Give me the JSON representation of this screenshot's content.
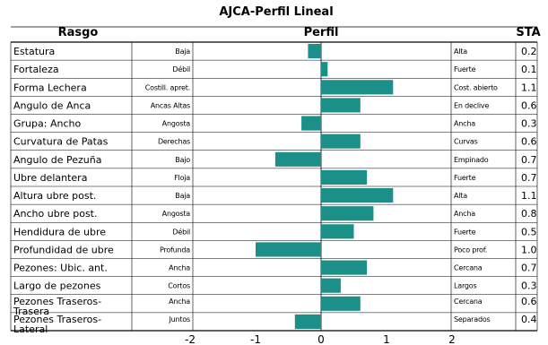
{
  "chart_data": {
    "type": "bar",
    "orientation": "horizontal",
    "title": "AJCA-Perfil Lineal",
    "headers": {
      "trait": "Rasgo",
      "profile": "Perfil",
      "sta": "STA"
    },
    "xlim": [
      -2,
      2
    ],
    "xticks": [
      "-2",
      "-1",
      "0",
      "1",
      "2"
    ],
    "bar_color": "#1a9088",
    "traits": [
      {
        "name": "Estatura",
        "low": "Baja",
        "high": "Alta",
        "sta_label": "0.2",
        "value": -0.2
      },
      {
        "name": "Fortaleza",
        "low": "Débil",
        "high": "Fuerte",
        "sta_label": "0.1",
        "value": 0.1
      },
      {
        "name": "Forma Lechera",
        "low": "Costill. apret.",
        "high": "Cost. abierto",
        "sta_label": "1.1",
        "value": 1.1
      },
      {
        "name": "Angulo de Anca",
        "low": "Ancas Altas",
        "high": "En declive",
        "sta_label": "0.6",
        "value": 0.6
      },
      {
        "name": "Grupa: Ancho",
        "low": "Angosta",
        "high": "Ancha",
        "sta_label": "0.3",
        "value": -0.3
      },
      {
        "name": "Curvatura de Patas",
        "low": "Derechas",
        "high": "Curvas",
        "sta_label": "0.6",
        "value": 0.6
      },
      {
        "name": "Angulo de Pezuña",
        "low": "Bajo",
        "high": "Empinado",
        "sta_label": "0.7",
        "value": -0.7
      },
      {
        "name": "Ubre delantera",
        "low": "Floja",
        "high": "Fuerte",
        "sta_label": "0.7",
        "value": 0.7
      },
      {
        "name": "Altura ubre post.",
        "low": "Baja",
        "high": "Alta",
        "sta_label": "1.1",
        "value": 1.1
      },
      {
        "name": "Ancho ubre post.",
        "low": "Angosta",
        "high": "Ancha",
        "sta_label": "0.8",
        "value": 0.8
      },
      {
        "name": "Hendidura de ubre",
        "low": "Débil",
        "high": "Fuerte",
        "sta_label": "0.5",
        "value": 0.5
      },
      {
        "name": "Profundidad de ubre",
        "low": "Profunda",
        "high": "Poco prof.",
        "sta_label": "1.0",
        "value": -1.0
      },
      {
        "name": "Pezones: Ubic. ant.",
        "low": "Ancha",
        "high": "Cercana",
        "sta_label": "0.7",
        "value": 0.7
      },
      {
        "name": "Largo de pezones",
        "low": "Cortos",
        "high": "Largos",
        "sta_label": "0.3",
        "value": 0.3
      },
      {
        "name": "Pezones Traseros-\nTrasera",
        "low": "Ancha",
        "high": "Cercana",
        "sta_label": "0.6",
        "value": 0.6
      },
      {
        "name": "Pezones Traseros-\nLateral",
        "low": "Juntos",
        "high": "Separados",
        "sta_label": "0.4",
        "value": -0.4
      }
    ]
  }
}
